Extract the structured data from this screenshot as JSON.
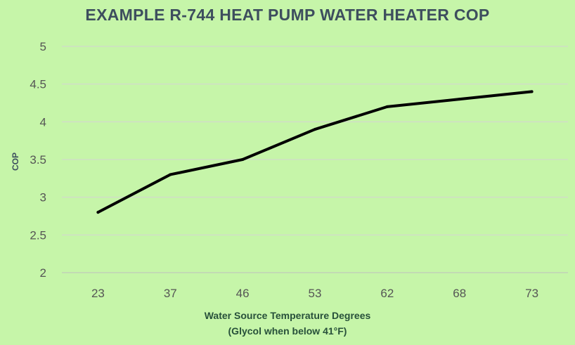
{
  "chart_data": {
    "type": "line",
    "title": "EXAMPLE R-744 HEAT PUMP WATER HEATER COP",
    "xlabel_lines": [
      "Water Source Temperature Degrees",
      "(Glycol when below 41°F)"
    ],
    "ylabel": "COP",
    "categories": [
      "23",
      "37",
      "46",
      "53",
      "62",
      "68",
      "73"
    ],
    "series": [
      {
        "values": [
          2.8,
          3.3,
          3.5,
          3.9,
          4.2,
          4.3,
          4.4
        ]
      }
    ],
    "ylim": [
      2,
      5
    ],
    "yticks": [
      "2",
      "2.5",
      "3",
      "3.5",
      "4",
      "4.5",
      "5"
    ],
    "grid": true,
    "legend": "none",
    "colors": {
      "background": "#c6f5a9",
      "line": "#000000",
      "grid": "#d4d4d4"
    }
  }
}
